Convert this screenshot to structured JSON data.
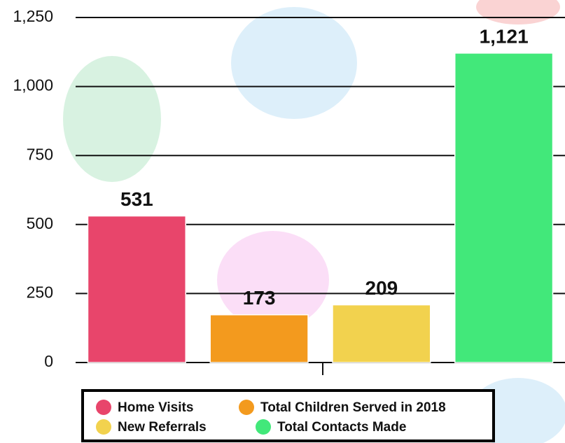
{
  "chart_data": {
    "type": "bar",
    "series": [
      {
        "name": "Home Visits",
        "color": "#e8456b",
        "values": [
          531
        ]
      },
      {
        "name": "Total Children Served in 2018",
        "color": "#f39a1e",
        "values": [
          173
        ]
      },
      {
        "name": "New Referrals",
        "color": "#f2d24e",
        "values": [
          209
        ]
      },
      {
        "name": "Total Contacts Made",
        "color": "#42e87a",
        "values": [
          1121
        ],
        "value_labels": [
          "1,121"
        ]
      }
    ],
    "ylim": [
      0,
      1250
    ],
    "yticks": [
      0,
      250,
      500,
      750,
      {
        "value": 1000,
        "label": "1,000"
      },
      {
        "value": 1250,
        "label": "1,250"
      }
    ],
    "grid": true,
    "legend": "bottom"
  }
}
